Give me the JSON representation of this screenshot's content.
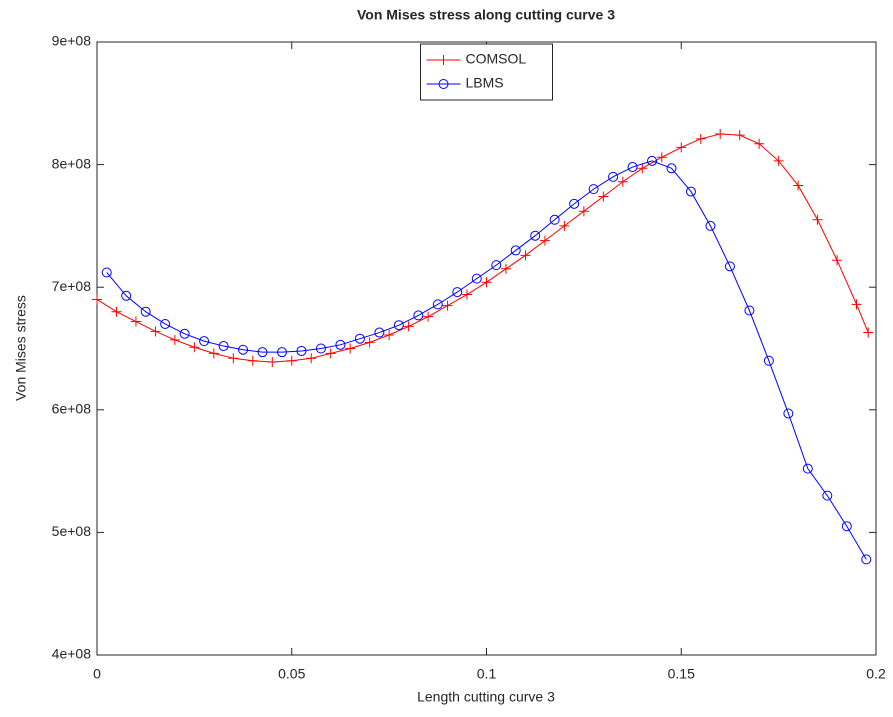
{
  "chart_data": {
    "type": "line",
    "title": "Von Mises stress along cutting curve 3",
    "xlabel": "Length cutting curve 3",
    "ylabel": "Von Mises stress",
    "xlim": [
      0,
      0.2
    ],
    "xticks": [
      0,
      0.05,
      0.1,
      0.15,
      0.2
    ],
    "ylim": [
      400000000,
      900000000
    ],
    "yticks": [
      {
        "value": 400000000,
        "label": "4e+08"
      },
      {
        "value": 500000000,
        "label": "5e+08"
      },
      {
        "value": 600000000,
        "label": "6e+08"
      },
      {
        "value": 700000000,
        "label": "7e+08"
      },
      {
        "value": 800000000,
        "label": "8e+08"
      },
      {
        "value": 900000000,
        "label": "9e+08"
      }
    ],
    "grid": false,
    "legend": "top",
    "series": [
      {
        "name": "COMSOL",
        "color": "#ff0000",
        "marker": "+",
        "x": [
          0,
          0.005,
          0.01,
          0.015,
          0.02,
          0.025,
          0.03,
          0.035,
          0.04,
          0.045,
          0.05,
          0.055,
          0.06,
          0.065,
          0.07,
          0.075,
          0.08,
          0.085,
          0.09,
          0.095,
          0.1,
          0.105,
          0.11,
          0.115,
          0.12,
          0.125,
          0.13,
          0.135,
          0.14,
          0.145,
          0.15,
          0.155,
          0.16,
          0.165,
          0.17,
          0.175,
          0.18,
          0.185,
          0.19,
          0.195,
          0.198
        ],
        "values": [
          690000000.0,
          680000000.0,
          672000000.0,
          664000000.0,
          657000000.0,
          651000000.0,
          646000000.0,
          642000000.0,
          640000000.0,
          639000000.0,
          640000000.0,
          642000000.0,
          646000000.0,
          650000000.0,
          655000000.0,
          661000000.0,
          668000000.0,
          676000000.0,
          685000000.0,
          694000000.0,
          704000000.0,
          715000000.0,
          726000000.0,
          738000000.0,
          750000000.0,
          762000000.0,
          774000000.0,
          786000000.0,
          797000000.0,
          806000000.0,
          814000000.0,
          821000000.0,
          825000000.0,
          824000000.0,
          817000000.0,
          803000000.0,
          783000000.0,
          755000000.0,
          722000000.0,
          686000000.0,
          663000000.0
        ]
      },
      {
        "name": "LBMS",
        "color": "#0000ff",
        "marker": "o",
        "x": [
          0.0025,
          0.0075,
          0.0125,
          0.0175,
          0.0225,
          0.0275,
          0.0325,
          0.0375,
          0.0425,
          0.0475,
          0.0525,
          0.0575,
          0.0625,
          0.0675,
          0.0725,
          0.0775,
          0.0825,
          0.0875,
          0.0925,
          0.0975,
          0.1025,
          0.1075,
          0.1125,
          0.1175,
          0.1225,
          0.1275,
          0.1325,
          0.1375,
          0.1425,
          0.1475,
          0.1525,
          0.1575,
          0.1625,
          0.1675,
          0.1725,
          0.1775,
          0.1825,
          0.1875,
          0.1925,
          0.1975
        ],
        "values": [
          712000000.0,
          693000000.0,
          680000000.0,
          670000000.0,
          662000000.0,
          656000000.0,
          652000000.0,
          649000000.0,
          647000000.0,
          647000000.0,
          648000000.0,
          650000000.0,
          653000000.0,
          658000000.0,
          663000000.0,
          669000000.0,
          677000000.0,
          686000000.0,
          696000000.0,
          707000000.0,
          718000000.0,
          730000000.0,
          742000000.0,
          755000000.0,
          768000000.0,
          780000000.0,
          790000000.0,
          798000000.0,
          803000000.0,
          797000000.0,
          778000000.0,
          750000000.0,
          717000000.0,
          681000000.0,
          640000000.0,
          597000000.0,
          552000000.0,
          530000000.0,
          505000000.0,
          478000000.0
        ]
      }
    ]
  }
}
